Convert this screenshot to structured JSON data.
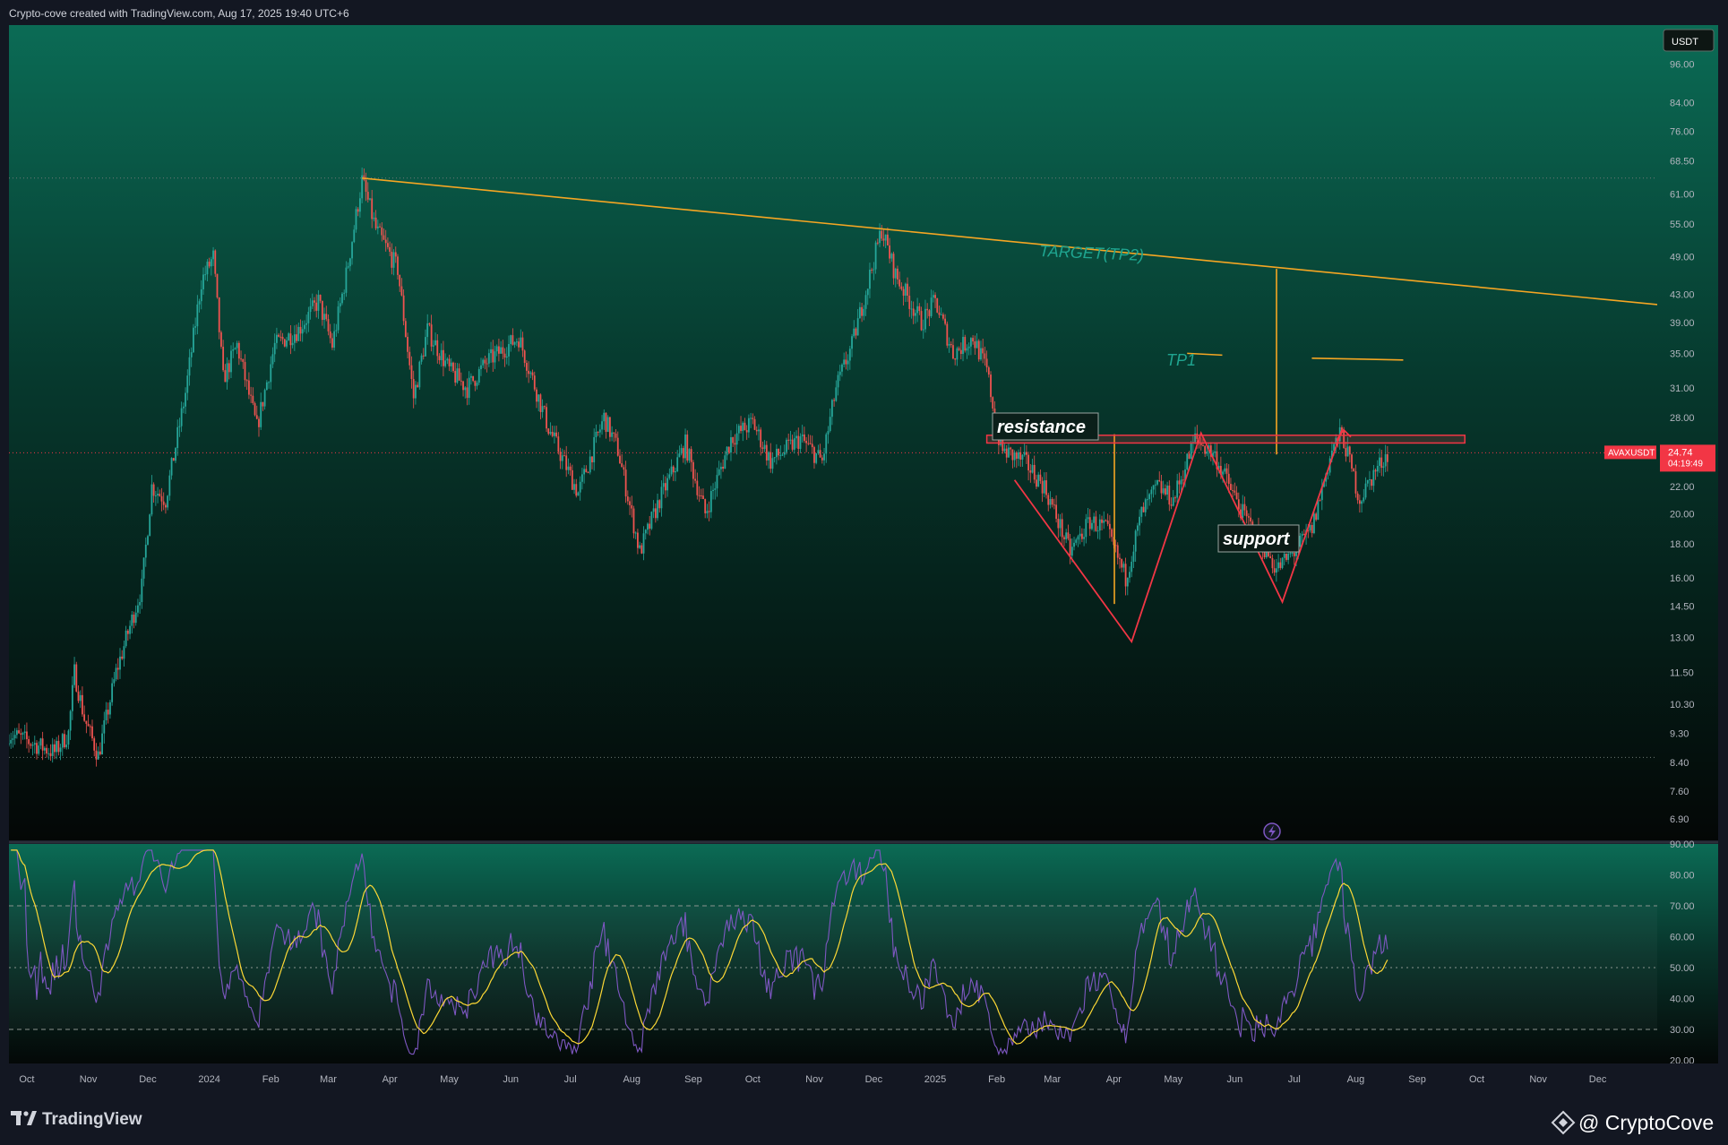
{
  "header": {
    "attribution": "Crypto-cove created with TradingView.com, Aug 17, 2025 19:40 UTC+6"
  },
  "footer": {
    "tradingview_logo": "TradingView",
    "brand": "@ CryptoCove"
  },
  "price_axis": {
    "currency": "USDT",
    "ticks": [
      "96.00",
      "84.00",
      "76.00",
      "68.50",
      "61.00",
      "55.00",
      "49.00",
      "43.00",
      "39.00",
      "35.00",
      "31.00",
      "28.00",
      "24.74",
      "22.00",
      "20.00",
      "18.00",
      "16.00",
      "14.50",
      "13.00",
      "11.50",
      "10.30",
      "9.30",
      "8.40",
      "7.60",
      "6.90"
    ],
    "symbol_label": "AVAXUSDT",
    "last_price": "24.74",
    "countdown": "04:19:49"
  },
  "rsi_axis": {
    "ticks": [
      "90.00",
      "80.00",
      "70.00",
      "60.00",
      "50.00",
      "40.00",
      "30.00",
      "20.00"
    ]
  },
  "time_axis": {
    "labels": [
      "Oct",
      "Nov",
      "Dec",
      "2024",
      "Feb",
      "Mar",
      "Apr",
      "May",
      "Jun",
      "Jul",
      "Aug",
      "Sep",
      "Oct",
      "Nov",
      "Dec",
      "2025",
      "Feb",
      "Mar",
      "Apr",
      "May",
      "Jun",
      "Jul",
      "Aug",
      "Sep",
      "Oct",
      "Nov",
      "Dec"
    ]
  },
  "annotations": {
    "target": "TARGET(TP2)",
    "tp1": "TP1",
    "resistance": "resistance",
    "support": "support"
  },
  "colors": {
    "bull": "#26a69a",
    "bear": "#ef5350",
    "trendline": "#f5a623",
    "pattern": "#f23645",
    "rsi": "#7e57c2",
    "rsi_ma": "#fdd835",
    "bg_top": "#0b6b55",
    "bg_bottom": "#050807"
  },
  "chart_data": {
    "type": "candlestick",
    "symbol": "AVAXUSDT",
    "scale": "log",
    "ylim": [
      6.4,
      110
    ],
    "x_range": [
      "2023-09-22",
      "2025-12-31"
    ],
    "last_close": 24.74,
    "price_keypoints": [
      [
        "2023-09-22",
        9.3
      ],
      [
        "2023-10-15",
        8.7
      ],
      [
        "2023-10-22",
        9.3
      ],
      [
        "2023-10-25",
        11.5
      ],
      [
        "2023-10-30",
        9.8
      ],
      [
        "2023-11-06",
        8.6
      ],
      [
        "2023-11-15",
        11.5
      ],
      [
        "2023-11-28",
        15.5
      ],
      [
        "2023-12-03",
        22.0
      ],
      [
        "2023-12-10",
        21.0
      ],
      [
        "2023-12-20",
        30.5
      ],
      [
        "2023-12-28",
        45.0
      ],
      [
        "2024-01-03",
        49.0
      ],
      [
        "2024-01-08",
        32.0
      ],
      [
        "2024-01-15",
        36.0
      ],
      [
        "2024-01-25",
        27.0
      ],
      [
        "2024-02-03",
        36.0
      ],
      [
        "2024-02-15",
        38.0
      ],
      [
        "2024-02-25",
        42.0
      ],
      [
        "2024-03-03",
        36.0
      ],
      [
        "2024-03-10",
        46.0
      ],
      [
        "2024-03-18",
        64.0
      ],
      [
        "2024-03-25",
        54.0
      ],
      [
        "2024-04-05",
        47.0
      ],
      [
        "2024-04-13",
        30.0
      ],
      [
        "2024-04-20",
        38.0
      ],
      [
        "2024-05-01",
        33.0
      ],
      [
        "2024-05-10",
        31.0
      ],
      [
        "2024-05-20",
        34.0
      ],
      [
        "2024-06-05",
        37.0
      ],
      [
        "2024-06-20",
        27.0
      ],
      [
        "2024-07-05",
        21.5
      ],
      [
        "2024-07-18",
        28.0
      ],
      [
        "2024-07-25",
        25.0
      ],
      [
        "2024-08-05",
        17.5
      ],
      [
        "2024-08-15",
        21.0
      ],
      [
        "2024-08-28",
        25.5
      ],
      [
        "2024-09-07",
        20.0
      ],
      [
        "2024-09-20",
        26.0
      ],
      [
        "2024-10-01",
        27.5
      ],
      [
        "2024-10-10",
        24.0
      ],
      [
        "2024-10-25",
        26.0
      ],
      [
        "2024-11-05",
        24.0
      ],
      [
        "2024-11-12",
        31.0
      ],
      [
        "2024-11-20",
        36.0
      ],
      [
        "2024-12-05",
        54.0
      ],
      [
        "2024-12-12",
        46.0
      ],
      [
        "2024-12-25",
        39.0
      ],
      [
        "2025-01-01",
        42.0
      ],
      [
        "2025-01-10",
        35.0
      ],
      [
        "2025-01-20",
        37.0
      ],
      [
        "2025-01-27",
        33.0
      ],
      [
        "2025-02-03",
        25.0
      ],
      [
        "2025-02-15",
        24.0
      ],
      [
        "2025-02-25",
        22.0
      ],
      [
        "2025-03-10",
        17.5
      ],
      [
        "2025-03-20",
        19.5
      ],
      [
        "2025-03-28",
        19.0
      ],
      [
        "2025-04-07",
        16.0
      ],
      [
        "2025-04-15",
        20.0
      ],
      [
        "2025-04-23",
        22.0
      ],
      [
        "2025-05-01",
        21.0
      ],
      [
        "2025-05-12",
        26.0
      ],
      [
        "2025-05-22",
        24.5
      ],
      [
        "2025-06-05",
        20.0
      ],
      [
        "2025-06-15",
        18.0
      ],
      [
        "2025-06-22",
        16.5
      ],
      [
        "2025-07-01",
        17.5
      ],
      [
        "2025-07-10",
        19.0
      ],
      [
        "2025-07-20",
        25.0
      ],
      [
        "2025-07-25",
        26.5
      ],
      [
        "2025-08-03",
        21.0
      ],
      [
        "2025-08-10",
        23.0
      ],
      [
        "2025-08-17",
        24.74
      ]
    ],
    "levels": {
      "target_tp2": {
        "label": "TARGET(TP2)",
        "trendline": [
          [
            "2024-03-18",
            64.5
          ],
          [
            "2025-12-31",
            41.5
          ]
        ]
      },
      "tp1": {
        "label": "TP1",
        "segment": [
          [
            "2025-05-08",
            35.0
          ],
          [
            "2025-08-15",
            34.2
          ]
        ]
      },
      "resistance_zone": {
        "label": "resistance",
        "from": 25.6,
        "to": 26.3,
        "x_range": [
          "2025-01-27",
          "2025-09-25"
        ]
      },
      "support": {
        "label": "support"
      }
    },
    "pattern_lines": [
      [
        [
          "2025-02-10",
          22.5
        ],
        [
          "2025-04-10",
          12.8
        ],
        [
          "2025-05-15",
          26.5
        ],
        [
          "2025-06-25",
          14.7
        ],
        [
          "2025-07-25",
          26.8
        ]
      ]
    ],
    "dotted_levels": [
      64.5,
      8.55
    ],
    "rsi": {
      "ylim": [
        19,
        90
      ],
      "bands": [
        30,
        50,
        70
      ],
      "last": 53
    }
  }
}
